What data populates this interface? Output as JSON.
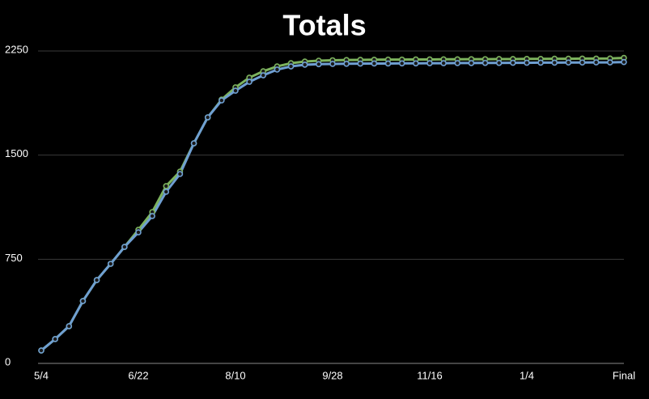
{
  "chart_data": {
    "type": "line",
    "title": "Totals",
    "categories": [
      "5/4",
      null,
      null,
      null,
      null,
      null,
      null,
      "6/22",
      null,
      null,
      null,
      null,
      null,
      null,
      "8/10",
      null,
      null,
      null,
      null,
      null,
      null,
      "9/28",
      null,
      null,
      null,
      null,
      null,
      null,
      "11/16",
      null,
      null,
      null,
      null,
      null,
      null,
      "1/4",
      null,
      null,
      null,
      null,
      null,
      null,
      "Final"
    ],
    "series": [
      {
        "color": "#7db35e",
        "values": [
          93,
          175,
          268,
          449,
          600,
          717,
          839,
          962,
          1090,
          1277,
          1381,
          1585,
          1772,
          1900,
          1988,
          2058,
          2104,
          2139,
          2162,
          2174,
          2180,
          2183,
          2185,
          2186,
          2187,
          2188,
          2188,
          2189,
          2189,
          2190,
          2190,
          2191,
          2191,
          2192,
          2192,
          2193,
          2193,
          2194,
          2194,
          2195,
          2195,
          2196,
          2200
        ]
      },
      {
        "color": "#6f9fd2",
        "values": [
          93,
          175,
          268,
          449,
          600,
          717,
          839,
          944,
          1061,
          1236,
          1364,
          1585,
          1772,
          1894,
          1964,
          2028,
          2075,
          2116,
          2139,
          2151,
          2155,
          2157,
          2158,
          2159,
          2160,
          2160,
          2161,
          2161,
          2162,
          2162,
          2163,
          2163,
          2164,
          2164,
          2165,
          2165,
          2166,
          2166,
          2167,
          2167,
          2168,
          2168,
          2170
        ]
      }
    ],
    "ylim": [
      0,
      2250
    ],
    "yticks": [
      0,
      750,
      1500,
      2250
    ],
    "grid": true
  }
}
